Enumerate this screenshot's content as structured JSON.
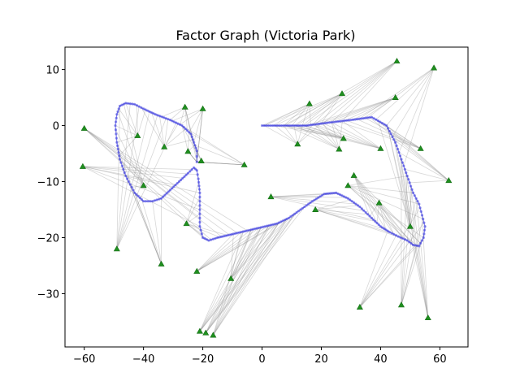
{
  "chart_data": {
    "type": "scatter",
    "title": "Factor Graph (Victoria Park)",
    "xlabel": "",
    "ylabel": "",
    "xlim": [
      -66.5,
      69.5
    ],
    "ylim": [
      -39.5,
      14
    ],
    "xticks": [
      -60,
      -40,
      -20,
      0,
      20,
      40,
      60
    ],
    "xtick_labels": [
      "−60",
      "−40",
      "−20",
      "0",
      "20",
      "40",
      "60"
    ],
    "yticks": [
      10,
      0,
      -10,
      -20,
      -30
    ],
    "ytick_labels": [
      "10",
      "0",
      "−10",
      "−20",
      "−30"
    ],
    "grid": false,
    "legend": "none",
    "colors": {
      "trajectory": "#3b3bdf",
      "landmark": "#1f8f1f",
      "factor_edge": "#8c8c8c"
    },
    "trajectory_waypoints": {
      "x": [
        0,
        8,
        15,
        22,
        30,
        37,
        42,
        45,
        47,
        49,
        51,
        53,
        54,
        55,
        54.5,
        53,
        51,
        49,
        46,
        43,
        40,
        37,
        33,
        29,
        25,
        21,
        17,
        13,
        9,
        5,
        1,
        -3,
        -7,
        -11,
        -15,
        -18,
        -20,
        -21,
        -21,
        -21,
        -21.5,
        -22,
        -23,
        -25,
        -28,
        -31,
        -34,
        -37,
        -40,
        -43,
        -46,
        -48,
        -49,
        -49.5,
        -49,
        -48,
        -46,
        -43,
        -40,
        -36,
        -31,
        -27,
        -24,
        -23,
        -22,
        -22,
        -22
      ],
      "y": [
        0,
        0,
        0,
        0.5,
        1,
        1.5,
        0,
        -3,
        -6,
        -9,
        -12,
        -14,
        -16,
        -18,
        -20,
        -21.5,
        -21.3,
        -20.5,
        -19.8,
        -19,
        -18,
        -16.5,
        -14.5,
        -13,
        -12,
        -12.2,
        -13.5,
        -15,
        -16.5,
        -17.5,
        -18,
        -18.5,
        -19,
        -19.5,
        -20,
        -20.5,
        -20,
        -18,
        -15,
        -12,
        -9.5,
        -8,
        -7.5,
        -8.5,
        -10,
        -11.5,
        -13,
        -13.5,
        -13.5,
        -12,
        -9,
        -6,
        -3,
        0,
        2,
        3.5,
        4,
        3.8,
        3,
        2,
        1,
        0,
        -1.5,
        -3,
        -4.5,
        -5.5,
        -6.5
      ]
    },
    "landmarks": {
      "x": [
        -60,
        -60.5,
        -49,
        -42,
        -40,
        -34,
        -33,
        -26,
        -25,
        -25.5,
        -22,
        -20,
        -20.5,
        -10.5,
        -6,
        -21,
        -19,
        -16.5,
        3,
        12,
        16,
        18,
        27,
        27.5,
        26,
        29,
        31,
        33,
        40,
        39.5,
        45.5,
        45,
        50,
        47,
        53.5,
        56,
        58,
        63
      ],
      "y": [
        -0.5,
        -7.3,
        -22,
        -1.8,
        -10.7,
        -24.7,
        -3.8,
        3.3,
        -4.6,
        -17.5,
        -26,
        3,
        -6.3,
        -27.3,
        -7,
        -36.7,
        -37,
        -37.4,
        -12.7,
        -3.3,
        3.9,
        -15,
        5.7,
        -2.3,
        -4.2,
        -10.7,
        -8.9,
        -32.4,
        -4.1,
        -13.8,
        11.5,
        5,
        -18,
        -32,
        -4.1,
        -34.3,
        10.3,
        -9.8
      ]
    },
    "factor_edges": [
      [
        0,
        40
      ],
      [
        1,
        45
      ],
      [
        2,
        60
      ],
      [
        3,
        57
      ],
      [
        4,
        55
      ],
      [
        5,
        52
      ],
      [
        6,
        62
      ],
      [
        7,
        64
      ],
      [
        8,
        66
      ],
      [
        9,
        42
      ],
      [
        10,
        36
      ],
      [
        11,
        65
      ],
      [
        12,
        66
      ],
      [
        13,
        36
      ],
      [
        14,
        66
      ],
      [
        15,
        35
      ],
      [
        16,
        34
      ],
      [
        17,
        35
      ],
      [
        18,
        27
      ],
      [
        19,
        3
      ],
      [
        20,
        2
      ],
      [
        21,
        24
      ],
      [
        22,
        3
      ],
      [
        23,
        4
      ],
      [
        24,
        5
      ],
      [
        25,
        18
      ],
      [
        26,
        22
      ],
      [
        27,
        20
      ],
      [
        28,
        5
      ],
      [
        29,
        22
      ],
      [
        30,
        5
      ],
      [
        31,
        7
      ],
      [
        32,
        14
      ],
      [
        33,
        17
      ],
      [
        34,
        10
      ],
      [
        35,
        15
      ],
      [
        36,
        12
      ],
      [
        37,
        13
      ]
    ]
  }
}
